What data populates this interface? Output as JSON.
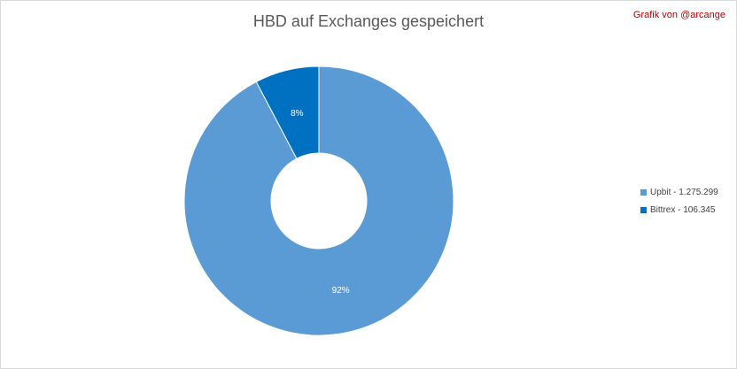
{
  "credit": "Grafik von @arcange",
  "chart_data": {
    "type": "pie",
    "title": "HBD auf Exchanges gespeichert",
    "categories": [
      "Upbit",
      "Bittrex"
    ],
    "values": [
      1275299,
      106345
    ],
    "percent_labels": [
      "92%",
      "8%"
    ],
    "legend_labels": [
      "Upbit - 1.275.299",
      "Bittrex - 106.345"
    ],
    "colors": [
      "#5b9bd5",
      "#0070c0"
    ],
    "hole": true,
    "start_angle_deg": 0,
    "legend_position": "right"
  }
}
